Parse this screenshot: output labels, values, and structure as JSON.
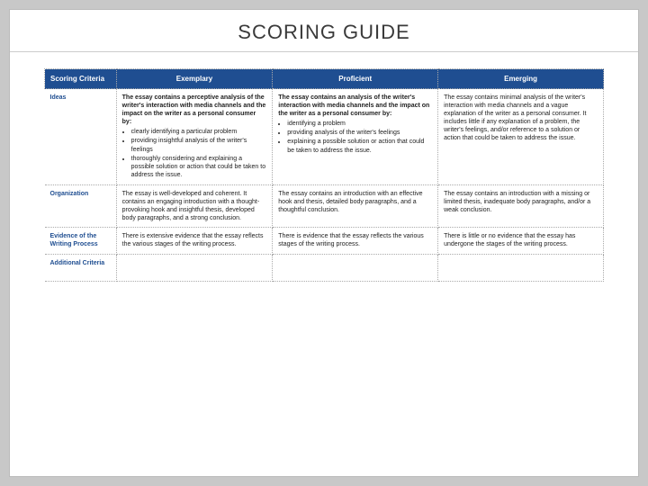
{
  "title": "SCORING GUIDE",
  "columns": [
    "Scoring Criteria",
    "Exemplary",
    "Proficient",
    "Emerging"
  ],
  "criteria": [
    {
      "name": "Ideas",
      "exemplary_intro": "The essay contains a perceptive analysis of the writer's interaction with media channels and the impact on the writer as a personal consumer by:",
      "exemplary_bullets": [
        "clearly identifying a particular problem",
        "providing insightful analysis of the writer's feelings",
        "thoroughly considering and explaining a possible solution or action that could be taken to address the issue."
      ],
      "proficient_intro": "The essay contains an analysis of the writer's interaction with media channels and the impact on the writer as a personal consumer by:",
      "proficient_bullets": [
        "identifying a problem",
        "providing analysis of the writer's feelings",
        "explaining a possible solution or action that could be taken to address the issue."
      ],
      "emerging": "The essay contains minimal analysis of the writer's interaction with media channels and a vague explanation of the writer as a personal consumer. It includes little if any explanation of a problem, the writer's feelings, and/or reference to a solution or action that could be taken to address the issue."
    },
    {
      "name": "Organization",
      "exemplary": "The essay is well-developed and coherent. It contains an engaging introduction with a thought-provoking hook and insightful thesis, developed body paragraphs, and a strong conclusion.",
      "proficient": "The essay contains an introduction with an effective hook and thesis, detailed body paragraphs, and a thoughtful conclusion.",
      "emerging": "The essay contains an introduction with a missing or limited thesis, inadequate body paragraphs, and/or a weak conclusion."
    },
    {
      "name": "Evidence of the Writing Process",
      "exemplary": "There is extensive evidence that the essay reflects the various stages of the writing process.",
      "proficient": "There is evidence that the essay reflects the various stages of the writing process.",
      "emerging": "There is little or no evidence that the essay has undergone the stages of the writing process."
    },
    {
      "name": "Additional Criteria",
      "exemplary": "",
      "proficient": "",
      "emerging": ""
    }
  ]
}
